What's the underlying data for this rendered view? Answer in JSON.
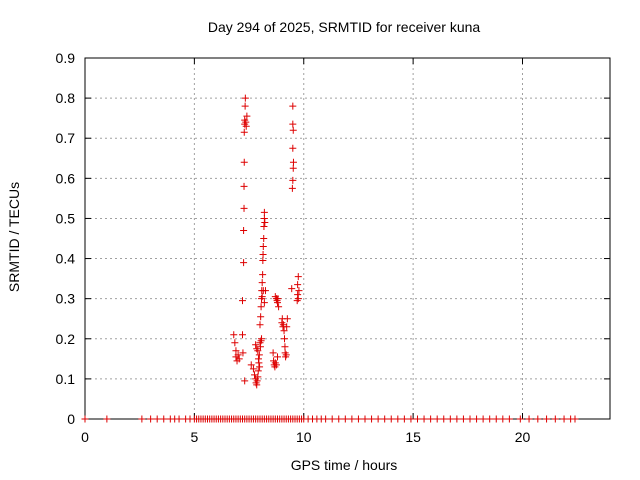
{
  "chart_data": {
    "type": "scatter",
    "title": "Day 294 of 2025, SRMTID for receiver kuna",
    "xlabel": "GPS time / hours",
    "ylabel": "SRMTID / TECUs",
    "xlim": [
      0,
      24
    ],
    "ylim": [
      0,
      0.9
    ],
    "xticks": [
      "0",
      "5",
      "10",
      "15",
      "20"
    ],
    "xtick_values": [
      0,
      5,
      10,
      15,
      20
    ],
    "yticks": [
      "0",
      "0.1",
      "0.2",
      "0.3",
      "0.4",
      "0.5",
      "0.6",
      "0.7",
      "0.8",
      "0.9"
    ],
    "ytick_values": [
      0,
      0.1,
      0.2,
      0.3,
      0.4,
      0.5,
      0.6,
      0.7,
      0.8,
      0.9
    ],
    "grid": true,
    "marker": "+",
    "color": "#dd0000",
    "series": [
      {
        "points": [
          [
            0.0,
            0
          ],
          [
            1.0,
            0
          ],
          [
            2.6,
            0
          ],
          [
            3.0,
            0
          ],
          [
            3.3,
            0
          ],
          [
            3.6,
            0
          ],
          [
            3.9,
            0
          ],
          [
            4.1,
            0
          ],
          [
            4.3,
            0
          ],
          [
            4.6,
            0
          ],
          [
            4.8,
            0
          ],
          [
            5.0,
            0
          ],
          [
            5.1,
            0
          ],
          [
            5.2,
            0
          ],
          [
            5.3,
            0
          ],
          [
            5.4,
            0
          ],
          [
            5.5,
            0
          ],
          [
            5.6,
            0
          ],
          [
            5.7,
            0
          ],
          [
            5.8,
            0
          ],
          [
            5.9,
            0
          ],
          [
            6.0,
            0
          ],
          [
            6.1,
            0
          ],
          [
            6.2,
            0
          ],
          [
            6.3,
            0
          ],
          [
            6.4,
            0
          ],
          [
            6.5,
            0
          ],
          [
            6.6,
            0
          ],
          [
            6.7,
            0
          ],
          [
            6.8,
            0
          ],
          [
            6.9,
            0
          ],
          [
            7.0,
            0
          ],
          [
            7.1,
            0
          ],
          [
            7.2,
            0
          ],
          [
            7.3,
            0
          ],
          [
            7.4,
            0
          ],
          [
            7.5,
            0
          ],
          [
            7.6,
            0
          ],
          [
            7.7,
            0
          ],
          [
            7.8,
            0
          ],
          [
            7.9,
            0
          ],
          [
            8.0,
            0
          ],
          [
            8.1,
            0
          ],
          [
            8.2,
            0
          ],
          [
            8.3,
            0
          ],
          [
            8.4,
            0
          ],
          [
            8.5,
            0
          ],
          [
            8.6,
            0
          ],
          [
            8.7,
            0
          ],
          [
            8.8,
            0
          ],
          [
            8.9,
            0
          ],
          [
            9.0,
            0
          ],
          [
            9.1,
            0
          ],
          [
            9.2,
            0
          ],
          [
            9.3,
            0
          ],
          [
            9.4,
            0
          ],
          [
            9.5,
            0
          ],
          [
            9.6,
            0
          ],
          [
            9.7,
            0
          ],
          [
            9.8,
            0
          ],
          [
            9.9,
            0
          ],
          [
            10.0,
            0
          ],
          [
            10.2,
            0
          ],
          [
            10.4,
            0
          ],
          [
            10.6,
            0
          ],
          [
            10.8,
            0
          ],
          [
            11.0,
            0
          ],
          [
            11.3,
            0
          ],
          [
            11.6,
            0
          ],
          [
            11.9,
            0
          ],
          [
            12.2,
            0
          ],
          [
            12.5,
            0
          ],
          [
            12.8,
            0
          ],
          [
            13.1,
            0
          ],
          [
            13.4,
            0
          ],
          [
            13.7,
            0
          ],
          [
            14.0,
            0
          ],
          [
            14.3,
            0
          ],
          [
            14.6,
            0
          ],
          [
            14.9,
            0
          ],
          [
            15.2,
            0
          ],
          [
            15.5,
            0
          ],
          [
            15.8,
            0
          ],
          [
            16.1,
            0
          ],
          [
            16.4,
            0
          ],
          [
            16.7,
            0
          ],
          [
            17.0,
            0
          ],
          [
            17.3,
            0
          ],
          [
            17.6,
            0
          ],
          [
            17.9,
            0
          ],
          [
            18.2,
            0
          ],
          [
            18.5,
            0
          ],
          [
            18.8,
            0
          ],
          [
            19.1,
            0
          ],
          [
            19.4,
            0
          ],
          [
            19.9,
            0
          ],
          [
            20.3,
            0
          ],
          [
            20.7,
            0
          ],
          [
            21.1,
            0
          ],
          [
            21.5,
            0
          ],
          [
            21.9,
            0
          ],
          [
            22.2,
            0
          ],
          [
            22.4,
            0
          ],
          [
            6.8,
            0.21
          ],
          [
            6.85,
            0.19
          ],
          [
            6.9,
            0.17
          ],
          [
            6.9,
            0.155
          ],
          [
            6.95,
            0.145
          ],
          [
            7.0,
            0.16
          ],
          [
            7.05,
            0.15
          ],
          [
            7.2,
            0.21
          ],
          [
            7.22,
            0.165
          ],
          [
            7.25,
            0.39
          ],
          [
            7.25,
            0.47
          ],
          [
            7.27,
            0.525
          ],
          [
            7.27,
            0.58
          ],
          [
            7.28,
            0.64
          ],
          [
            7.28,
            0.715
          ],
          [
            7.3,
            0.735
          ],
          [
            7.3,
            0.745
          ],
          [
            7.32,
            0.78
          ],
          [
            7.33,
            0.8
          ],
          [
            7.35,
            0.74
          ],
          [
            7.37,
            0.73
          ],
          [
            7.4,
            0.755
          ],
          [
            7.3,
            0.095
          ],
          [
            7.2,
            0.295
          ],
          [
            7.6,
            0.135
          ],
          [
            7.7,
            0.125
          ],
          [
            7.75,
            0.11
          ],
          [
            7.8,
            0.1
          ],
          [
            7.82,
            0.09
          ],
          [
            7.85,
            0.085
          ],
          [
            7.87,
            0.095
          ],
          [
            7.9,
            0.105
          ],
          [
            7.92,
            0.12
          ],
          [
            7.95,
            0.14
          ],
          [
            7.97,
            0.16
          ],
          [
            8.0,
            0.19
          ],
          [
            8.02,
            0.18
          ],
          [
            8.05,
            0.195
          ],
          [
            8.07,
            0.2
          ],
          [
            7.8,
            0.185
          ],
          [
            7.85,
            0.175
          ],
          [
            7.9,
            0.17
          ],
          [
            7.93,
            0.15
          ],
          [
            7.98,
            0.13
          ],
          [
            8.0,
            0.235
          ],
          [
            8.03,
            0.255
          ],
          [
            8.05,
            0.28
          ],
          [
            8.07,
            0.3
          ],
          [
            8.08,
            0.32
          ],
          [
            8.1,
            0.34
          ],
          [
            8.12,
            0.36
          ],
          [
            8.13,
            0.395
          ],
          [
            8.14,
            0.41
          ],
          [
            8.15,
            0.43
          ],
          [
            8.17,
            0.45
          ],
          [
            8.18,
            0.48
          ],
          [
            8.2,
            0.5
          ],
          [
            8.2,
            0.515
          ],
          [
            8.22,
            0.49
          ],
          [
            8.1,
            0.305
          ],
          [
            8.15,
            0.32
          ],
          [
            8.2,
            0.29
          ],
          [
            8.25,
            0.32
          ],
          [
            8.6,
            0.165
          ],
          [
            8.62,
            0.145
          ],
          [
            8.65,
            0.135
          ],
          [
            8.68,
            0.13
          ],
          [
            8.7,
            0.14
          ],
          [
            8.75,
            0.135
          ],
          [
            8.8,
            0.155
          ],
          [
            8.7,
            0.305
          ],
          [
            8.75,
            0.3
          ],
          [
            8.78,
            0.295
          ],
          [
            8.8,
            0.29
          ],
          [
            8.82,
            0.3
          ],
          [
            8.85,
            0.28
          ],
          [
            9.0,
            0.24
          ],
          [
            9.02,
            0.25
          ],
          [
            9.05,
            0.23
          ],
          [
            9.07,
            0.235
          ],
          [
            9.1,
            0.22
          ],
          [
            9.12,
            0.2
          ],
          [
            9.14,
            0.18
          ],
          [
            9.15,
            0.165
          ],
          [
            9.17,
            0.155
          ],
          [
            9.2,
            0.16
          ],
          [
            9.22,
            0.23
          ],
          [
            9.25,
            0.25
          ],
          [
            9.45,
            0.325
          ],
          [
            9.48,
            0.575
          ],
          [
            9.5,
            0.595
          ],
          [
            9.52,
            0.625
          ],
          [
            9.53,
            0.64
          ],
          [
            9.5,
            0.675
          ],
          [
            9.52,
            0.72
          ],
          [
            9.5,
            0.735
          ],
          [
            9.5,
            0.78
          ],
          [
            9.7,
            0.295
          ],
          [
            9.72,
            0.31
          ],
          [
            9.75,
            0.3
          ],
          [
            9.72,
            0.335
          ],
          [
            9.75,
            0.355
          ],
          [
            9.78,
            0.32
          ]
        ]
      }
    ]
  }
}
